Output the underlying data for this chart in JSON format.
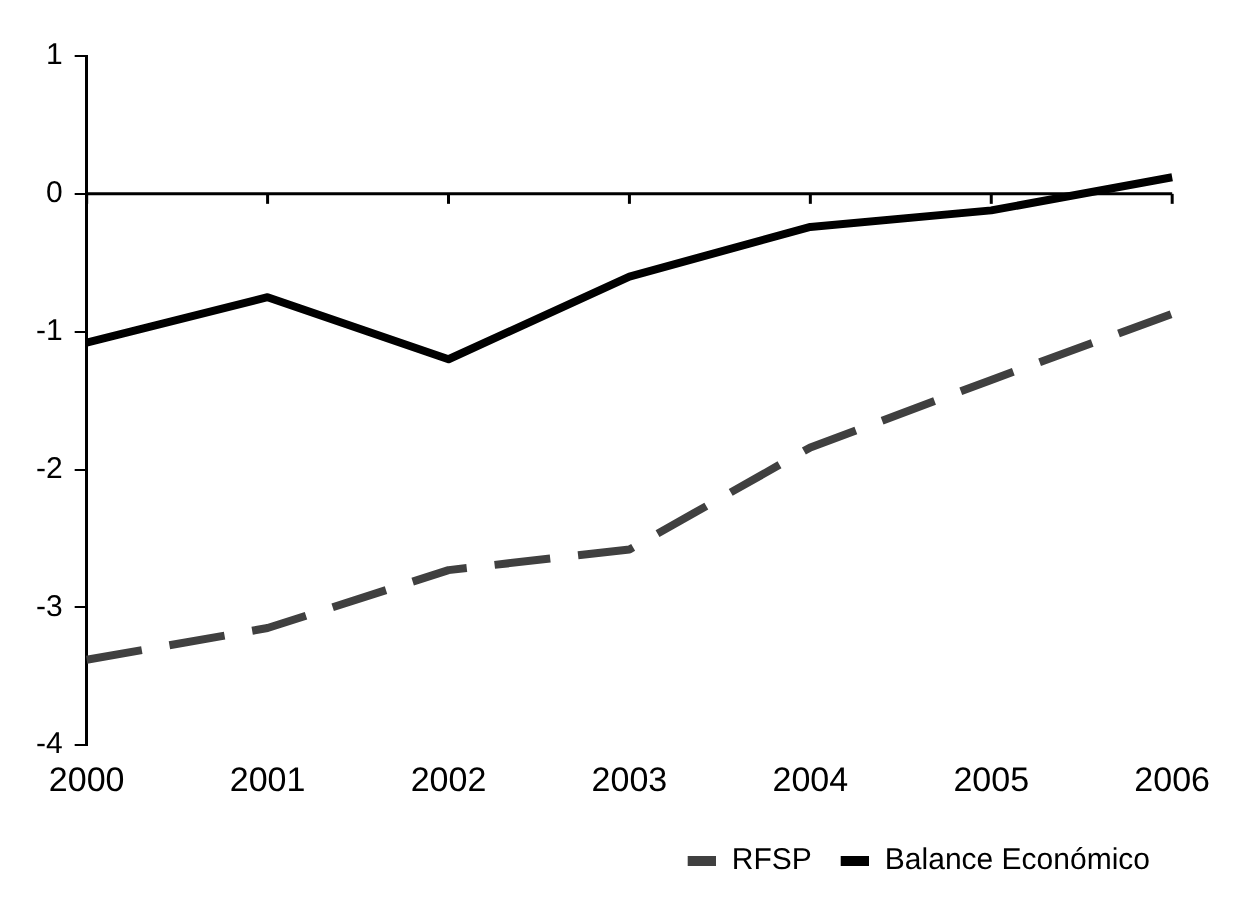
{
  "chart_data": {
    "type": "line",
    "categories": [
      "2000",
      "2001",
      "2002",
      "2003",
      "2004",
      "2005",
      "2006"
    ],
    "series": [
      {
        "name": "RFSP",
        "color": "#404040",
        "line_style": "dashed",
        "values": [
          -3.38,
          -3.15,
          -2.73,
          -2.58,
          -1.84,
          -1.35,
          -0.87
        ]
      },
      {
        "name": "Balance Económico",
        "color": "#000000",
        "line_style": "solid",
        "values": [
          -1.08,
          -0.75,
          -1.2,
          -0.6,
          -0.24,
          -0.12,
          0.12
        ]
      }
    ],
    "ylim": [
      -4,
      1
    ],
    "yticks": [
      -4,
      -3,
      -2,
      -1,
      0,
      1
    ],
    "grid": false,
    "legend": "bottom right",
    "marker": "none",
    "ref_lines": [
      {
        "axis": "y",
        "value": 0
      }
    ]
  }
}
